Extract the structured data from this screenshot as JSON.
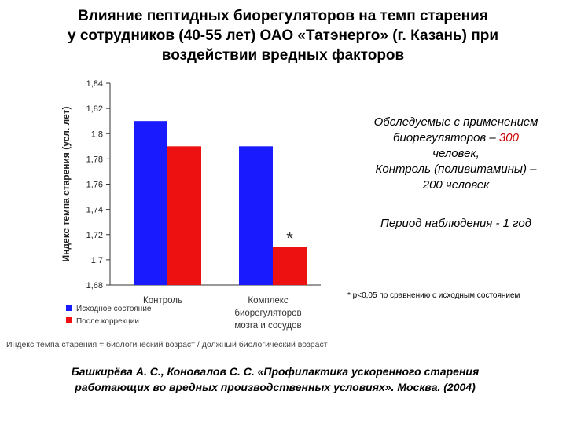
{
  "title_lines": [
    "Влияние пептидных биорегуляторов на темп старения",
    "у сотрудников (40-55 лет) ОАО «Татэнерго» (г. Казань) при",
    "воздействии вредных факторов"
  ],
  "notes": {
    "line1": "Обследуемые с применением",
    "line2_prefix": "биорегуляторов – ",
    "line2_highlight": "300",
    "line3": "человек,",
    "line4": "Контроль (поливитамины) –",
    "line5": "200 человек",
    "period": "Период наблюдения -  1 год"
  },
  "footnote": "* р<0,05 по сравнению с исходным состоянием",
  "definition": "Индекс темпа старения = биологический возраст / должный биологический возраст",
  "reference_lines": [
    "Башкирёва А. С., Коновалов С. С. «Профилактика ускоренного старения",
    "работающих во вредных производственных условиях». Москва. (2004)"
  ],
  "colors": {
    "series1": "#1a1aff",
    "series2": "#ee1111",
    "highlight": "#cc0000"
  },
  "chart_data": {
    "type": "bar",
    "categories": [
      [
        "Контроль"
      ],
      [
        "Комплекс",
        "биорегуляторов",
        "мозга и сосудов"
      ]
    ],
    "series": [
      {
        "name": "Исходное состояние",
        "values": [
          1.81,
          1.79
        ]
      },
      {
        "name": "После коррекции",
        "values": [
          1.79,
          1.71
        ]
      }
    ],
    "ylabel": "Индекс темпа старения (усл. лет)",
    "ylim": [
      1.68,
      1.84
    ],
    "yticks": [
      "1,68",
      "1,7",
      "1,72",
      "1,74",
      "1,76",
      "1,78",
      "1,8",
      "1,82",
      "1,84"
    ],
    "annotations": [
      {
        "text": "*",
        "category": 1,
        "series": 1
      }
    ],
    "grid": false,
    "legend_position": "bottom-left"
  }
}
